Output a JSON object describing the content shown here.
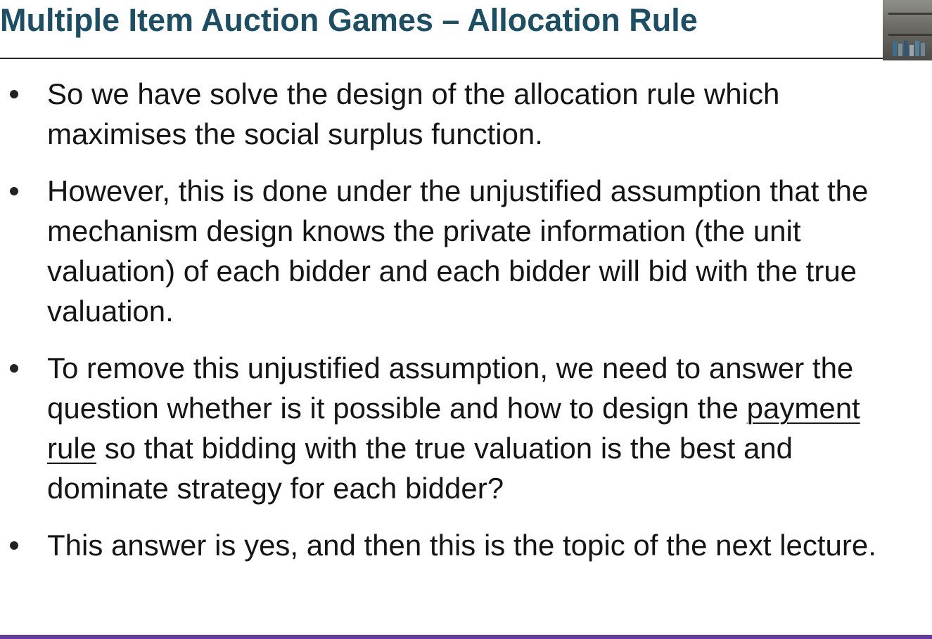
{
  "slide": {
    "title": "Multiple Item Auction Games –  Allocation Rule",
    "bullets": [
      {
        "text": "So we have solve the design of the allocation rule which maximises the social surplus function."
      },
      {
        "text": "However, this is done under the unjustified assumption that the mechanism design knows the private information (the unit valuation) of each bidder and each bidder will bid with the true valuation."
      },
      {
        "before": "To remove this unjustified assumption, we need to answer the question whether is it possible and how to design the ",
        "underlined": "payment rule",
        "after": " so that bidding with the true valuation is the best and dominate strategy for each bidder?"
      },
      {
        "text": "This answer is yes, and then this is the topic of the next lecture."
      }
    ]
  },
  "colors": {
    "title": "#1c4f63",
    "body_text": "#151515",
    "bottom_bar": "#5e3fa0"
  }
}
